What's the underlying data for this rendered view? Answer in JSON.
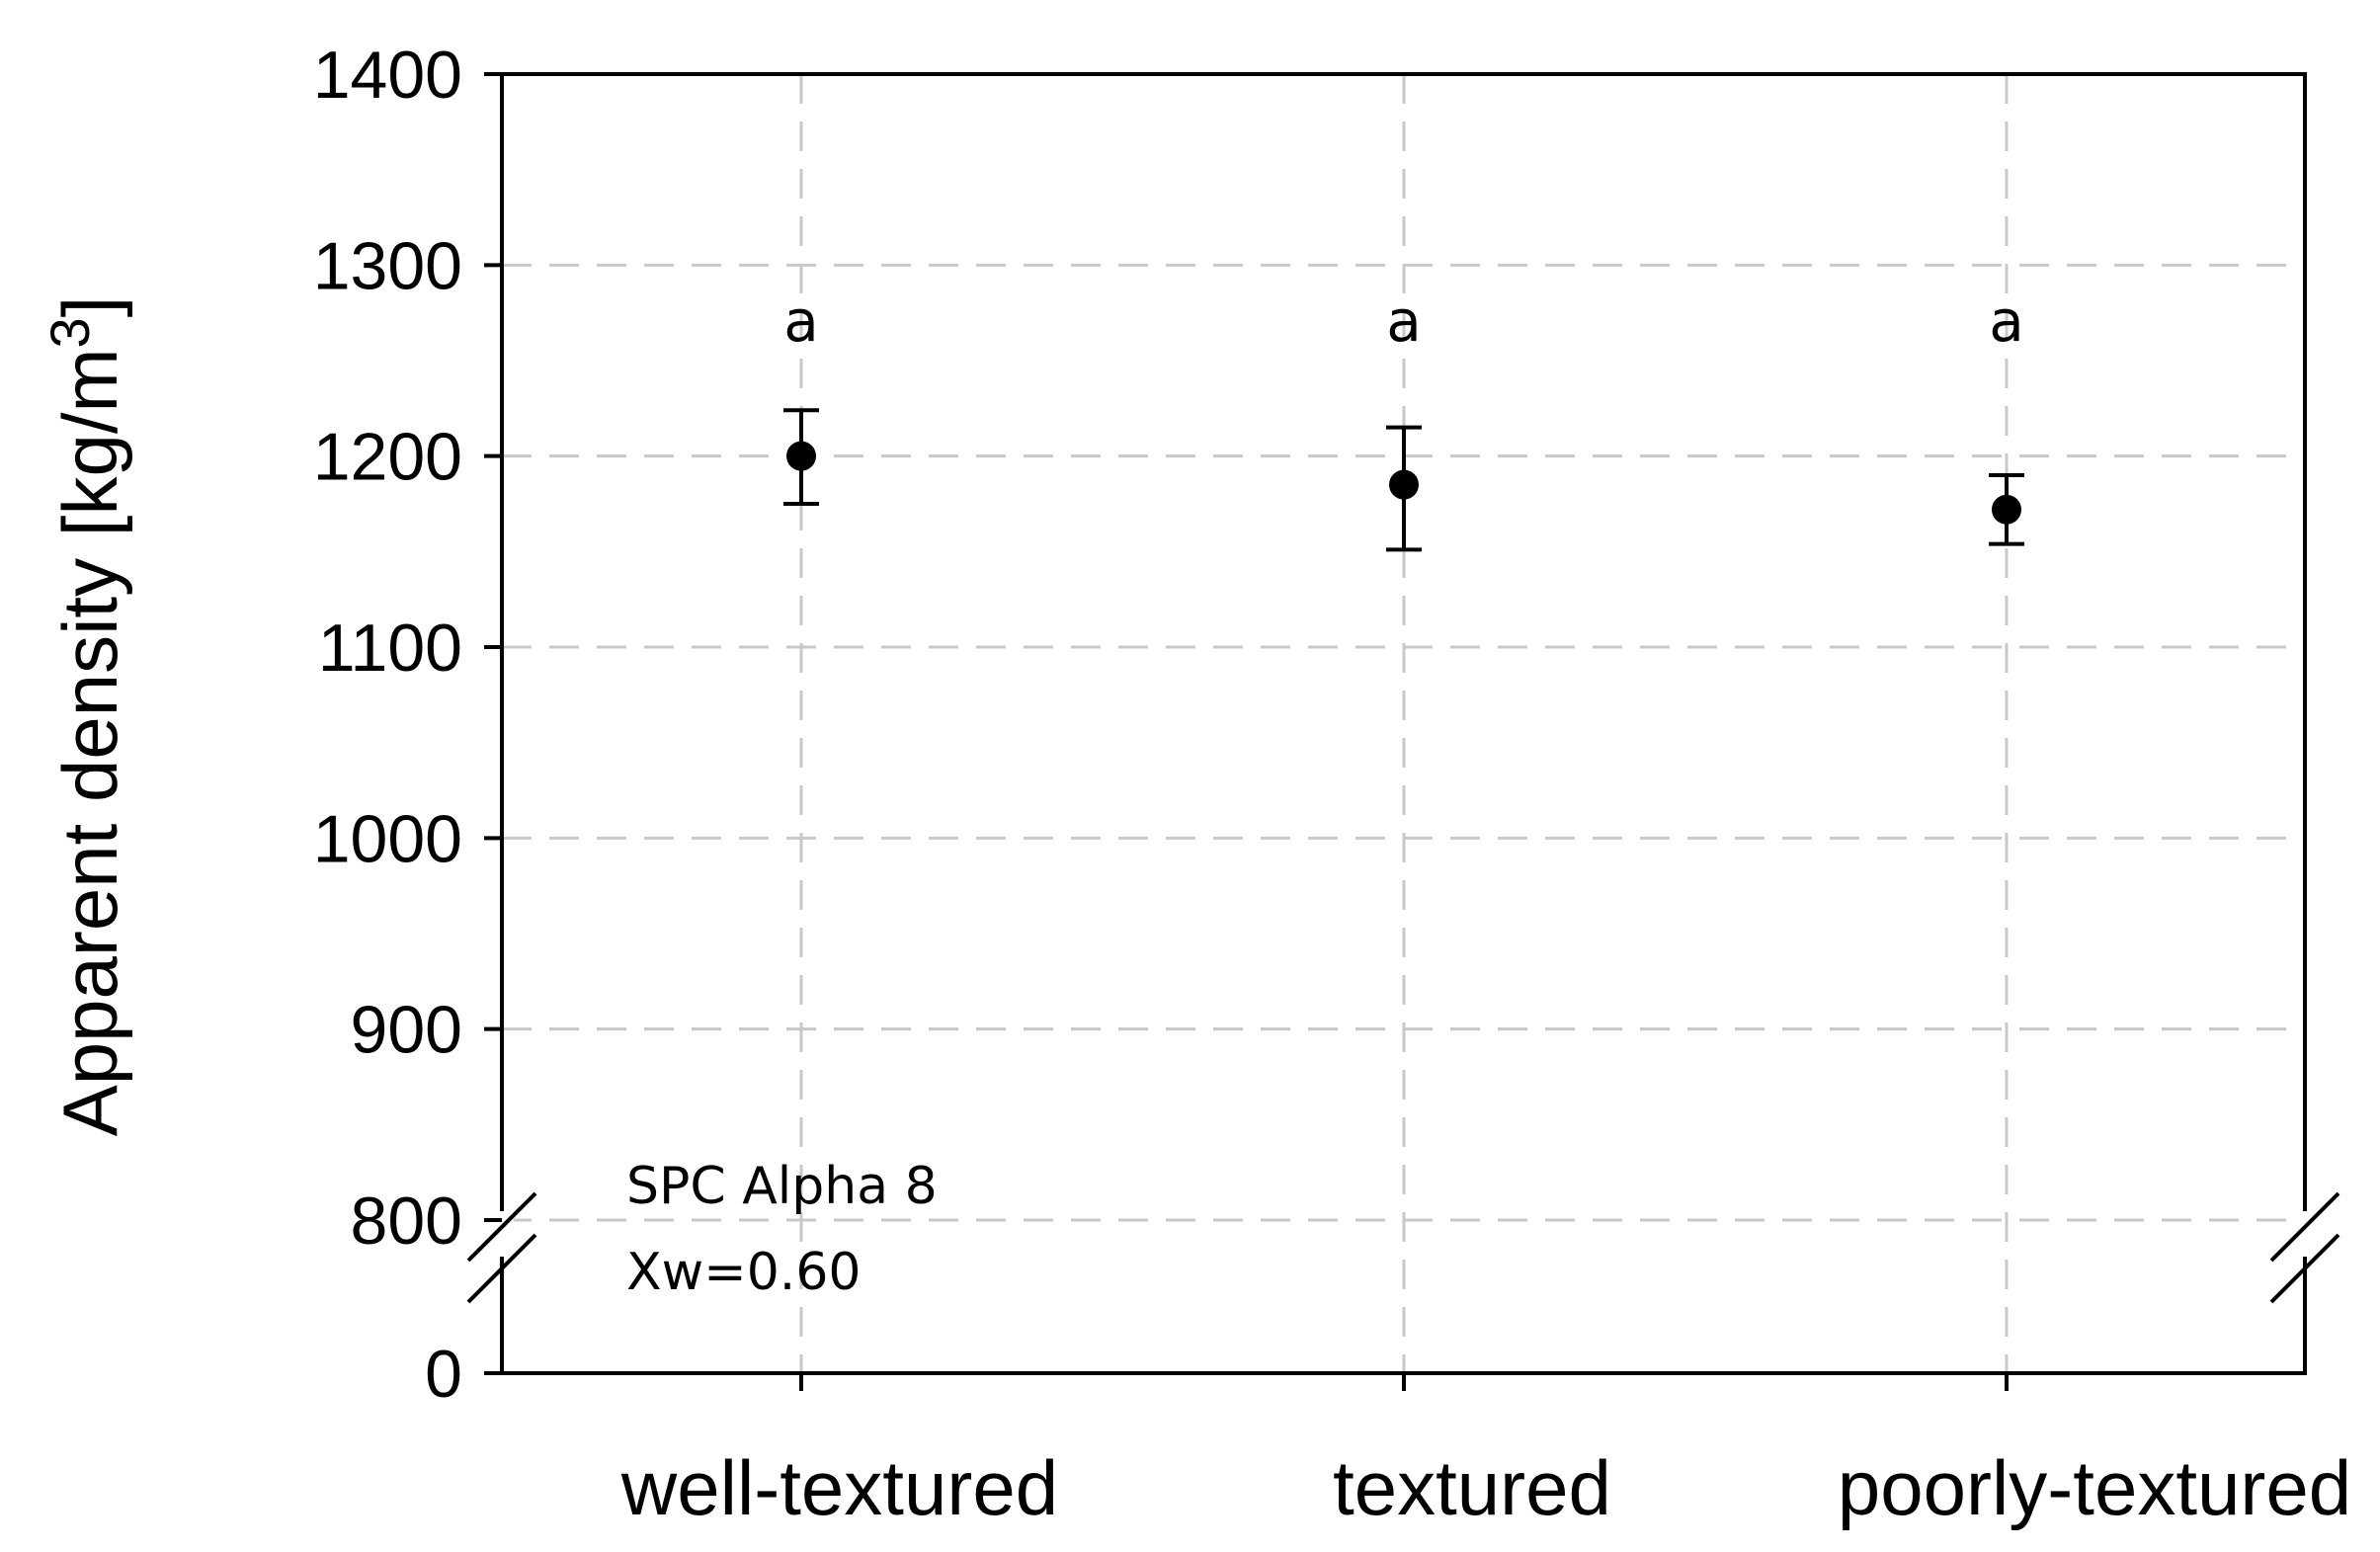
{
  "chart_data": {
    "type": "scatter",
    "categories": [
      "well-textured",
      "textured",
      "poorly-textured"
    ],
    "series": [
      {
        "values": [
          1200,
          1185,
          1172
        ],
        "error_low": [
          1175,
          1151,
          1154
        ],
        "error_high": [
          1224,
          1215,
          1190
        ],
        "significance_labels": [
          "a",
          "a",
          "a"
        ]
      }
    ],
    "ylabel": "Apparent density [kg/m",
    "ylabel_superscript": "3",
    "ylabel_suffix": "]",
    "y_ticks": [
      "1400",
      "1300",
      "1200",
      "1100",
      "1000",
      "900",
      "800",
      "0"
    ],
    "ylim": [
      800,
      1400
    ],
    "y_axis_break": {
      "lower_value": 0,
      "upper_start": 800
    },
    "grid": true,
    "grid_style": "dashed",
    "annotations": [
      "SPC Alpha 8",
      "Xw=0.60"
    ],
    "colors": {
      "marker": "#000000",
      "grid": "#c8c8c8",
      "axis": "#000000"
    }
  }
}
